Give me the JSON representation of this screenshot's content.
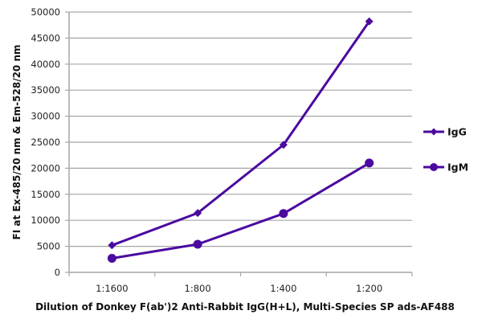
{
  "chart_data": {
    "type": "line",
    "title": "",
    "xlabel": "Dilution of Donkey F(ab')2 Anti-Rabbit IgG(H+L), Multi-Species SP ads-AF488",
    "ylabel": "FI at Ex-485/20 nm & Em-528/20 nm",
    "categories": [
      "1:1600",
      "1:800",
      "1:400",
      "1:200"
    ],
    "ylim": [
      0,
      50000
    ],
    "yticks": [
      0,
      5000,
      10000,
      15000,
      20000,
      25000,
      30000,
      35000,
      40000,
      45000,
      50000
    ],
    "grid": true,
    "legend_position": "right",
    "series": [
      {
        "name": "IgG",
        "marker": "diamond",
        "color": "#4b0aa0",
        "values": [
          5200,
          11400,
          24500,
          48200
        ]
      },
      {
        "name": "IgM",
        "marker": "circle",
        "color": "#4b0aa0",
        "values": [
          2700,
          5400,
          11300,
          21000
        ]
      }
    ]
  },
  "legend": {
    "items": [
      "IgG",
      "IgM"
    ]
  }
}
